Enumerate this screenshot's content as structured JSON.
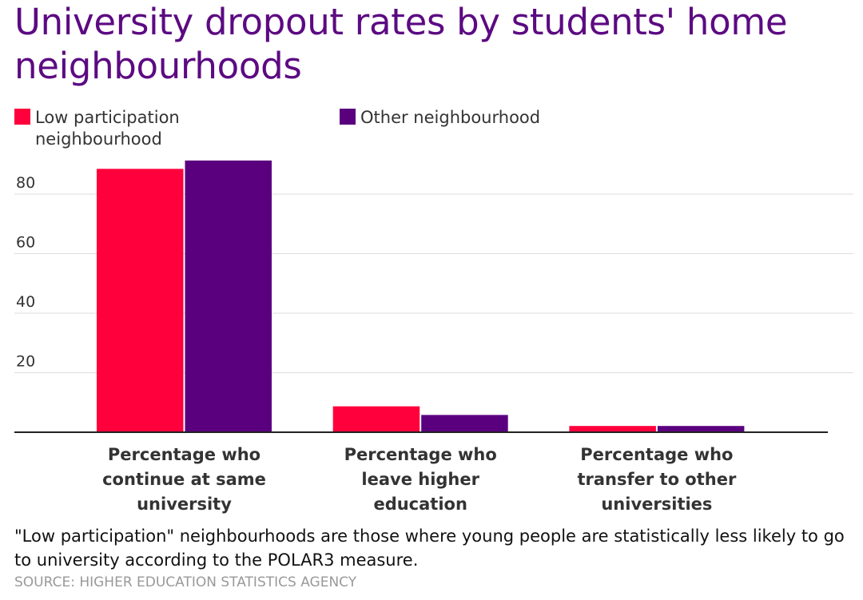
{
  "title": "University dropout rates by students' home neighbourhoods",
  "note": "\"Low participation\" neighbourhoods are those where young people are statistically less likely to go to university according to the POLAR3 measure.",
  "source": "SOURCE: HIGHER EDUCATION STATISTICS AGENCY",
  "chart_data": {
    "type": "bar",
    "title": "University dropout rates by students' home neighbourhoods",
    "xlabel": "",
    "ylabel": "",
    "ylim": [
      0,
      95
    ],
    "yticks": [
      20,
      40,
      60,
      80
    ],
    "grid": true,
    "legend": "top-left",
    "categories": [
      [
        "Percentage who",
        "continue at same",
        "university"
      ],
      [
        "Percentage who",
        "leave higher",
        "education"
      ],
      [
        "Percentage who",
        "transfer to other",
        "universities"
      ]
    ],
    "series": [
      {
        "name": "Low participation neighbourhood",
        "color": "#ff003c",
        "values": [
          88.5,
          8.7,
          2.1
        ]
      },
      {
        "name": "Other neighbourhood",
        "color": "#5a007f",
        "values": [
          91.3,
          5.8,
          2.1
        ]
      }
    ]
  }
}
